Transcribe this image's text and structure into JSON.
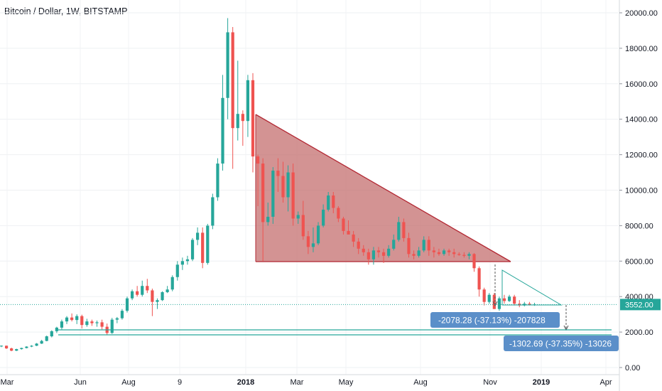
{
  "chart_data": {
    "type": "candlestick",
    "title": "Bitcoin / Dollar, 1W, BITSTAMP",
    "xlabel": "",
    "ylabel": "",
    "ylim": [
      0,
      20500
    ],
    "y_ticks": [
      0,
      2000,
      4000,
      6000,
      8000,
      10000,
      12000,
      14000,
      16000,
      18000,
      20000
    ],
    "y_tick_labels": [
      "0.00",
      "2000.00",
      "4000.00",
      "6000.00",
      "8000.00",
      "10000.00",
      "12000.00",
      "14000.00",
      "16000.00",
      "18000.00",
      "20000.00"
    ],
    "x_tick_labels": [
      "Mar",
      "Jun",
      "Aug",
      "9",
      "2018",
      "Mar",
      "May",
      "Aug",
      "Nov",
      "2019",
      "Apr"
    ],
    "bold_x_labels": [
      "2018",
      "2019"
    ],
    "last_price": 3552.0,
    "last_price_label": "3552.00",
    "grid": true,
    "colors": {
      "up": "#26a69a",
      "down": "#ef5350",
      "triangle_fill": "#c26a6a",
      "triangle_stroke": "#b22833",
      "projection_line": "#26a69a",
      "label_bg": "#5b8fc9",
      "price_label_bg": "#26a69a"
    },
    "annotations": [
      {
        "type": "descending-triangle",
        "text": ""
      },
      {
        "type": "projection",
        "label": "-2078.28 (-37.13%) -207828"
      },
      {
        "type": "projection",
        "label": "-1302.69 (-37.35%) -13026"
      }
    ],
    "candles": [
      [
        1200,
        1250,
        1150,
        1230
      ],
      [
        1230,
        1240,
        1050,
        1080
      ],
      [
        1080,
        1120,
        920,
        950
      ],
      [
        950,
        1060,
        930,
        1040
      ],
      [
        1040,
        1120,
        1010,
        1100
      ],
      [
        1100,
        1200,
        1080,
        1180
      ],
      [
        1180,
        1260,
        1150,
        1230
      ],
      [
        1230,
        1380,
        1210,
        1350
      ],
      [
        1350,
        1560,
        1330,
        1500
      ],
      [
        1500,
        1800,
        1480,
        1760
      ],
      [
        1760,
        2100,
        1700,
        2050
      ],
      [
        2050,
        2300,
        1950,
        2250
      ],
      [
        2250,
        2700,
        2150,
        2600
      ],
      [
        2600,
        2900,
        2450,
        2820
      ],
      [
        2820,
        3050,
        2600,
        2680
      ],
      [
        2680,
        3000,
        2450,
        2900
      ],
      [
        2900,
        2980,
        2200,
        2400
      ],
      [
        2400,
        2750,
        2300,
        2600
      ],
      [
        2600,
        2700,
        2350,
        2500
      ],
      [
        2500,
        2650,
        2300,
        2550
      ],
      [
        2550,
        2700,
        2150,
        2300
      ],
      [
        2300,
        2480,
        1850,
        1950
      ],
      [
        1950,
        2800,
        1900,
        2700
      ],
      [
        2700,
        2850,
        2500,
        2780
      ],
      [
        2780,
        3300,
        2700,
        3200
      ],
      [
        3200,
        4000,
        3100,
        3900
      ],
      [
        3900,
        4400,
        3800,
        4300
      ],
      [
        4300,
        4600,
        4000,
        4100
      ],
      [
        4100,
        4900,
        4000,
        4600
      ],
      [
        4600,
        5000,
        4200,
        4350
      ],
      [
        4350,
        4450,
        2900,
        3700
      ],
      [
        3700,
        3900,
        3300,
        3800
      ],
      [
        3800,
        4300,
        3750,
        4250
      ],
      [
        4250,
        4600,
        4200,
        4400
      ],
      [
        4400,
        5200,
        4300,
        5100
      ],
      [
        5100,
        6000,
        4900,
        5800
      ],
      [
        5800,
        6200,
        5500,
        6000
      ],
      [
        6000,
        6300,
        5800,
        6100
      ],
      [
        6100,
        7300,
        6000,
        7200
      ],
      [
        7200,
        7900,
        6900,
        7600
      ],
      [
        7600,
        7900,
        5600,
        5900
      ],
      [
        5900,
        8100,
        5800,
        8000
      ],
      [
        8000,
        9800,
        7800,
        9600
      ],
      [
        9600,
        11800,
        9400,
        11500
      ],
      [
        11500,
        16500,
        11100,
        15200
      ],
      [
        15200,
        19700,
        14000,
        18900
      ],
      [
        18900,
        19200,
        11200,
        13500
      ],
      [
        13500,
        17300,
        12800,
        14300
      ],
      [
        14300,
        14500,
        12500,
        13900
      ],
      [
        13900,
        16500,
        13000,
        16200
      ],
      [
        16200,
        16600,
        11000,
        11900
      ],
      [
        11900,
        12000,
        9100,
        11500
      ],
      [
        11500,
        11800,
        6000,
        8200
      ],
      [
        8200,
        9300,
        8000,
        8500
      ],
      [
        8500,
        11300,
        8100,
        11100
      ],
      [
        11100,
        11800,
        9900,
        10800
      ],
      [
        10800,
        11600,
        9300,
        9600
      ],
      [
        9600,
        11400,
        8800,
        11000
      ],
      [
        11000,
        11500,
        8000,
        8400
      ],
      [
        8400,
        8800,
        8100,
        8600
      ],
      [
        8600,
        9400,
        7200,
        7400
      ],
      [
        7400,
        7700,
        6400,
        6800
      ],
      [
        6800,
        7900,
        6500,
        7000
      ],
      [
        7000,
        8200,
        6900,
        8000
      ],
      [
        8000,
        9200,
        7900,
        8900
      ],
      [
        8900,
        9900,
        8800,
        9700
      ],
      [
        9700,
        9900,
        8700,
        9000
      ],
      [
        9000,
        9100,
        8200,
        8400
      ],
      [
        8400,
        8500,
        7500,
        7700
      ],
      [
        7700,
        8300,
        7600,
        7500
      ],
      [
        7500,
        7700,
        6800,
        7100
      ],
      [
        7100,
        7300,
        6400,
        6700
      ],
      [
        6700,
        6900,
        6300,
        6500
      ],
      [
        6500,
        6700,
        5800,
        6100
      ],
      [
        6100,
        6800,
        5800,
        6600
      ],
      [
        6600,
        6800,
        6200,
        6500
      ],
      [
        6500,
        6700,
        5900,
        6300
      ],
      [
        6300,
        6900,
        6200,
        6700
      ],
      [
        6700,
        7500,
        6600,
        7200
      ],
      [
        7200,
        8500,
        7100,
        8200
      ],
      [
        8200,
        8400,
        7100,
        7300
      ],
      [
        7300,
        7600,
        6200,
        6400
      ],
      [
        6400,
        6600,
        6100,
        6300
      ],
      [
        6300,
        6800,
        6200,
        6600
      ],
      [
        6600,
        7400,
        6500,
        7200
      ],
      [
        7200,
        7400,
        6300,
        6600
      ],
      [
        6600,
        6800,
        6200,
        6500
      ],
      [
        6500,
        6700,
        6300,
        6400
      ],
      [
        6400,
        6700,
        6300,
        6600
      ],
      [
        6600,
        6700,
        6300,
        6500
      ],
      [
        6500,
        6700,
        6200,
        6400
      ],
      [
        6400,
        6500,
        6300,
        6350
      ],
      [
        6350,
        6500,
        6200,
        6300
      ],
      [
        6300,
        6500,
        6100,
        6400
      ],
      [
        6400,
        6450,
        5400,
        5600
      ],
      [
        5600,
        5700,
        4000,
        4400
      ],
      [
        4400,
        4500,
        3500,
        3700
      ],
      [
        3700,
        4200,
        3600,
        4100
      ],
      [
        4100,
        4200,
        3300,
        3300
      ],
      [
        3300,
        4000,
        3200,
        3900
      ],
      [
        3900,
        4100,
        3600,
        3750
      ],
      [
        3750,
        4100,
        3700,
        4000
      ],
      [
        4000,
        4100,
        3500,
        3600
      ],
      [
        3600,
        3800,
        3400,
        3500
      ],
      [
        3500,
        3700,
        3450,
        3600
      ],
      [
        3600,
        3700,
        3500,
        3550
      ],
      [
        3550,
        3650,
        3480,
        3552
      ]
    ]
  }
}
